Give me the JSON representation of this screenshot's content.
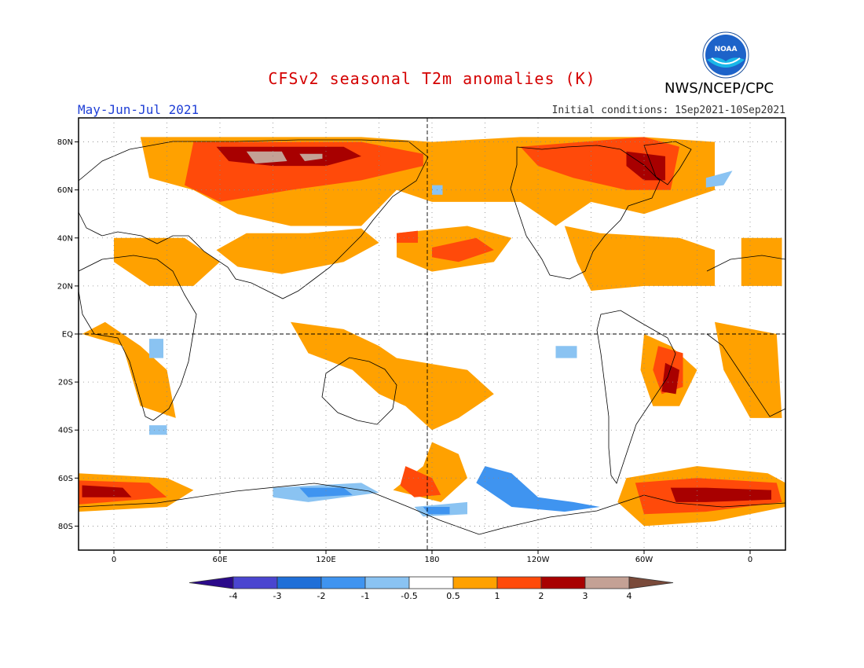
{
  "title": "CFSv2 seasonal T2m anomalies (K)",
  "agency": "NWS/NCEP/CPC",
  "logo_text": "NOAA",
  "period": "May-Jun-Jul 2021",
  "initial_conditions": "Initial conditions: 1Sep2021-10Sep2021",
  "map": {
    "lon_range": [
      -20,
      380
    ],
    "lat_range": [
      -90,
      90
    ],
    "lon_ticks": [
      {
        "lon": 0,
        "label": "0"
      },
      {
        "lon": 60,
        "label": "60E"
      },
      {
        "lon": 120,
        "label": "120E"
      },
      {
        "lon": 180,
        "label": "180"
      },
      {
        "lon": 240,
        "label": "120W"
      },
      {
        "lon": 300,
        "label": "60W"
      },
      {
        "lon": 360,
        "label": "0"
      }
    ],
    "lat_ticks": [
      {
        "lat": 80,
        "label": "80N"
      },
      {
        "lat": 60,
        "label": "60N"
      },
      {
        "lat": 40,
        "label": "40N"
      },
      {
        "lat": 20,
        "label": "20N"
      },
      {
        "lat": 0,
        "label": "EQ"
      },
      {
        "lat": -20,
        "label": "20S"
      },
      {
        "lat": -40,
        "label": "40S"
      },
      {
        "lat": -60,
        "label": "60S"
      },
      {
        "lat": -80,
        "label": "80S"
      }
    ],
    "gridlines": "dotted",
    "reference_lines": [
      "equator",
      "dateline"
    ]
  },
  "colorbar": {
    "labels": [
      "-4",
      "-3",
      "-2",
      "-1",
      "-0.5",
      "0.5",
      "1",
      "2",
      "3",
      "4"
    ],
    "colors": [
      "#2b0a8a",
      "#4a45d0",
      "#1f6fd8",
      "#3f94f0",
      "#8ac3f2",
      "#ffffff",
      "#ffa100",
      "#ff4a0a",
      "#a80000",
      "#c4a195",
      "#7a4a3a"
    ]
  },
  "anomaly_regions": [
    {
      "level": "1",
      "color": "#ffa100",
      "points": [
        [
          15,
          82
        ],
        [
          140,
          82
        ],
        [
          180,
          80
        ],
        [
          230,
          82
        ],
        [
          300,
          82
        ],
        [
          340,
          80
        ],
        [
          340,
          60
        ],
        [
          300,
          50
        ],
        [
          270,
          55
        ],
        [
          250,
          45
        ],
        [
          230,
          55
        ],
        [
          180,
          55
        ],
        [
          160,
          60
        ],
        [
          140,
          45
        ],
        [
          100,
          45
        ],
        [
          70,
          50
        ],
        [
          45,
          60
        ],
        [
          20,
          65
        ]
      ]
    },
    {
      "level": "2",
      "color": "#ff4a0a",
      "points": [
        [
          45,
          80
        ],
        [
          140,
          80
        ],
        [
          175,
          75
        ],
        [
          175,
          70
        ],
        [
          140,
          64
        ],
        [
          100,
          60
        ],
        [
          60,
          55
        ],
        [
          40,
          62
        ]
      ]
    },
    {
      "level": "2",
      "color": "#ff4a0a",
      "points": [
        [
          230,
          78
        ],
        [
          300,
          82
        ],
        [
          320,
          78
        ],
        [
          315,
          60
        ],
        [
          290,
          60
        ],
        [
          260,
          65
        ],
        [
          240,
          70
        ]
      ]
    },
    {
      "level": "3",
      "color": "#a80000",
      "points": [
        [
          58,
          78
        ],
        [
          130,
          78
        ],
        [
          140,
          74
        ],
        [
          120,
          70
        ],
        [
          90,
          70
        ],
        [
          65,
          72
        ]
      ]
    },
    {
      "level": "3",
      "color": "#a80000",
      "points": [
        [
          290,
          76
        ],
        [
          312,
          74
        ],
        [
          312,
          64
        ],
        [
          300,
          64
        ],
        [
          290,
          70
        ]
      ]
    },
    {
      "level": "4",
      "color": "#c4a195",
      "points": [
        [
          75,
          76
        ],
        [
          95,
          76
        ],
        [
          98,
          72
        ],
        [
          80,
          71
        ]
      ]
    },
    {
      "level": "4",
      "color": "#c4a195",
      "points": [
        [
          105,
          75
        ],
        [
          118,
          75
        ],
        [
          118,
          73
        ],
        [
          108,
          72
        ]
      ]
    },
    {
      "level": "1",
      "color": "#ffa100",
      "points": [
        [
          160,
          42
        ],
        [
          200,
          45
        ],
        [
          225,
          40
        ],
        [
          215,
          30
        ],
        [
          180,
          26
        ],
        [
          160,
          32
        ]
      ]
    },
    {
      "level": "2",
      "color": "#ff4a0a",
      "points": [
        [
          180,
          36
        ],
        [
          205,
          40
        ],
        [
          215,
          35
        ],
        [
          195,
          30
        ],
        [
          180,
          32
        ]
      ]
    },
    {
      "level": "2",
      "color": "#ff4a0a",
      "points": [
        [
          160,
          42
        ],
        [
          172,
          43
        ],
        [
          172,
          38
        ],
        [
          160,
          38
        ]
      ]
    },
    {
      "level": "1",
      "color": "#ffa100",
      "points": [
        [
          255,
          45
        ],
        [
          275,
          42
        ],
        [
          320,
          40
        ],
        [
          340,
          35
        ],
        [
          340,
          20
        ],
        [
          300,
          20
        ],
        [
          270,
          18
        ],
        [
          262,
          30
        ]
      ]
    },
    {
      "level": "1",
      "color": "#ffa100",
      "points": [
        [
          0,
          40
        ],
        [
          40,
          40
        ],
        [
          60,
          30
        ],
        [
          45,
          20
        ],
        [
          20,
          20
        ],
        [
          0,
          30
        ]
      ]
    },
    {
      "level": "1",
      "color": "#ffa100",
      "points": [
        [
          58,
          35
        ],
        [
          75,
          42
        ],
        [
          110,
          42
        ],
        [
          140,
          44
        ],
        [
          150,
          38
        ],
        [
          130,
          30
        ],
        [
          95,
          25
        ],
        [
          70,
          28
        ]
      ]
    },
    {
      "level": "1",
      "color": "#ffa100",
      "points": [
        [
          355,
          40
        ],
        [
          378,
          40
        ],
        [
          378,
          20
        ],
        [
          355,
          20
        ]
      ]
    },
    {
      "level": "1",
      "color": "#ffa100",
      "points": [
        [
          -18,
          0
        ],
        [
          5,
          -5
        ],
        [
          15,
          -30
        ],
        [
          35,
          -35
        ],
        [
          30,
          -15
        ],
        [
          15,
          -5
        ],
        [
          -5,
          5
        ]
      ]
    },
    {
      "level": "1",
      "color": "#ffa100",
      "points": [
        [
          340,
          5
        ],
        [
          375,
          0
        ],
        [
          378,
          -35
        ],
        [
          360,
          -35
        ],
        [
          345,
          -15
        ]
      ]
    },
    {
      "level": "1",
      "color": "#ffa100",
      "points": [
        [
          100,
          5
        ],
        [
          130,
          2
        ],
        [
          150,
          -5
        ],
        [
          160,
          -10
        ],
        [
          200,
          -15
        ],
        [
          215,
          -25
        ],
        [
          195,
          -35
        ],
        [
          180,
          -40
        ],
        [
          165,
          -30
        ],
        [
          150,
          -25
        ],
        [
          135,
          -15
        ],
        [
          110,
          -8
        ]
      ]
    },
    {
      "level": "1",
      "color": "#ffa100",
      "points": [
        [
          180,
          -45
        ],
        [
          175,
          -55
        ],
        [
          158,
          -65
        ],
        [
          185,
          -70
        ],
        [
          200,
          -60
        ],
        [
          195,
          -50
        ]
      ]
    },
    {
      "level": "2",
      "color": "#ff4a0a",
      "points": [
        [
          165,
          -55
        ],
        [
          180,
          -60
        ],
        [
          185,
          -67
        ],
        [
          170,
          -68
        ],
        [
          162,
          -63
        ]
      ]
    },
    {
      "level": "1",
      "color": "#ffa100",
      "points": [
        [
          300,
          0
        ],
        [
          315,
          -5
        ],
        [
          330,
          -15
        ],
        [
          320,
          -30
        ],
        [
          305,
          -30
        ],
        [
          298,
          -15
        ]
      ]
    },
    {
      "level": "2",
      "color": "#ff4a0a",
      "points": [
        [
          308,
          -5
        ],
        [
          322,
          -8
        ],
        [
          322,
          -22
        ],
        [
          310,
          -25
        ],
        [
          305,
          -15
        ]
      ]
    },
    {
      "level": "3",
      "color": "#a80000",
      "points": [
        [
          312,
          -12
        ],
        [
          320,
          -15
        ],
        [
          318,
          -25
        ],
        [
          310,
          -24
        ]
      ]
    },
    {
      "level": "1",
      "color": "#ffa100",
      "points": [
        [
          290,
          -60
        ],
        [
          330,
          -55
        ],
        [
          370,
          -58
        ],
        [
          380,
          -62
        ],
        [
          380,
          -72
        ],
        [
          340,
          -78
        ],
        [
          300,
          -80
        ],
        [
          285,
          -70
        ]
      ]
    },
    {
      "level": "2",
      "color": "#ff4a0a",
      "points": [
        [
          295,
          -62
        ],
        [
          330,
          -60
        ],
        [
          375,
          -62
        ],
        [
          378,
          -70
        ],
        [
          335,
          -74
        ],
        [
          300,
          -75
        ]
      ]
    },
    {
      "level": "3",
      "color": "#a80000",
      "points": [
        [
          315,
          -64
        ],
        [
          335,
          -64
        ],
        [
          372,
          -65
        ],
        [
          372,
          -69
        ],
        [
          335,
          -70
        ],
        [
          318,
          -70
        ]
      ]
    },
    {
      "level": "1",
      "color": "#ffa100",
      "points": [
        [
          -20,
          -58
        ],
        [
          30,
          -60
        ],
        [
          45,
          -65
        ],
        [
          30,
          -72
        ],
        [
          -20,
          -74
        ]
      ]
    },
    {
      "level": "2",
      "color": "#ff4a0a",
      "points": [
        [
          -20,
          -61
        ],
        [
          20,
          -62
        ],
        [
          30,
          -68
        ],
        [
          -20,
          -71
        ]
      ]
    },
    {
      "level": "3",
      "color": "#a80000",
      "points": [
        [
          -18,
          -63
        ],
        [
          5,
          -64
        ],
        [
          10,
          -68
        ],
        [
          -18,
          -68
        ]
      ]
    },
    {
      "level": "-0.5",
      "color": "#8ac3f2",
      "points": [
        [
          90,
          -64
        ],
        [
          140,
          -62
        ],
        [
          150,
          -66
        ],
        [
          110,
          -70
        ],
        [
          90,
          -68
        ]
      ]
    },
    {
      "level": "-1",
      "color": "#3f94f0",
      "points": [
        [
          105,
          -64
        ],
        [
          130,
          -64
        ],
        [
          135,
          -67
        ],
        [
          110,
          -68
        ]
      ]
    },
    {
      "level": "-1",
      "color": "#3f94f0",
      "points": [
        [
          210,
          -55
        ],
        [
          225,
          -58
        ],
        [
          240,
          -68
        ],
        [
          260,
          -70
        ],
        [
          275,
          -72
        ],
        [
          255,
          -74
        ],
        [
          225,
          -72
        ],
        [
          205,
          -62
        ]
      ]
    },
    {
      "level": "-0.5",
      "color": "#8ac3f2",
      "points": [
        [
          170,
          -72
        ],
        [
          200,
          -70
        ],
        [
          200,
          -75
        ],
        [
          175,
          -76
        ]
      ]
    },
    {
      "level": "-1",
      "color": "#3f94f0",
      "points": [
        [
          175,
          -72
        ],
        [
          190,
          -72
        ],
        [
          190,
          -75
        ],
        [
          178,
          -75
        ]
      ]
    },
    {
      "level": "-0.5",
      "color": "#8ac3f2",
      "points": [
        [
          335,
          65
        ],
        [
          350,
          68
        ],
        [
          345,
          62
        ],
        [
          335,
          61
        ]
      ]
    },
    {
      "level": "-0.5",
      "color": "#8ac3f2",
      "points": [
        [
          180,
          62
        ],
        [
          186,
          62
        ],
        [
          186,
          58
        ],
        [
          180,
          58
        ]
      ]
    },
    {
      "level": "-0.5",
      "color": "#8ac3f2",
      "points": [
        [
          20,
          -2
        ],
        [
          28,
          -2
        ],
        [
          28,
          -10
        ],
        [
          20,
          -10
        ]
      ]
    },
    {
      "level": "-0.5",
      "color": "#8ac3f2",
      "points": [
        [
          20,
          -38
        ],
        [
          30,
          -38
        ],
        [
          30,
          -42
        ],
        [
          20,
          -42
        ]
      ]
    },
    {
      "level": "-0.5",
      "color": "#8ac3f2",
      "points": [
        [
          250,
          -5
        ],
        [
          262,
          -5
        ],
        [
          262,
          -10
        ],
        [
          250,
          -10
        ]
      ]
    }
  ]
}
